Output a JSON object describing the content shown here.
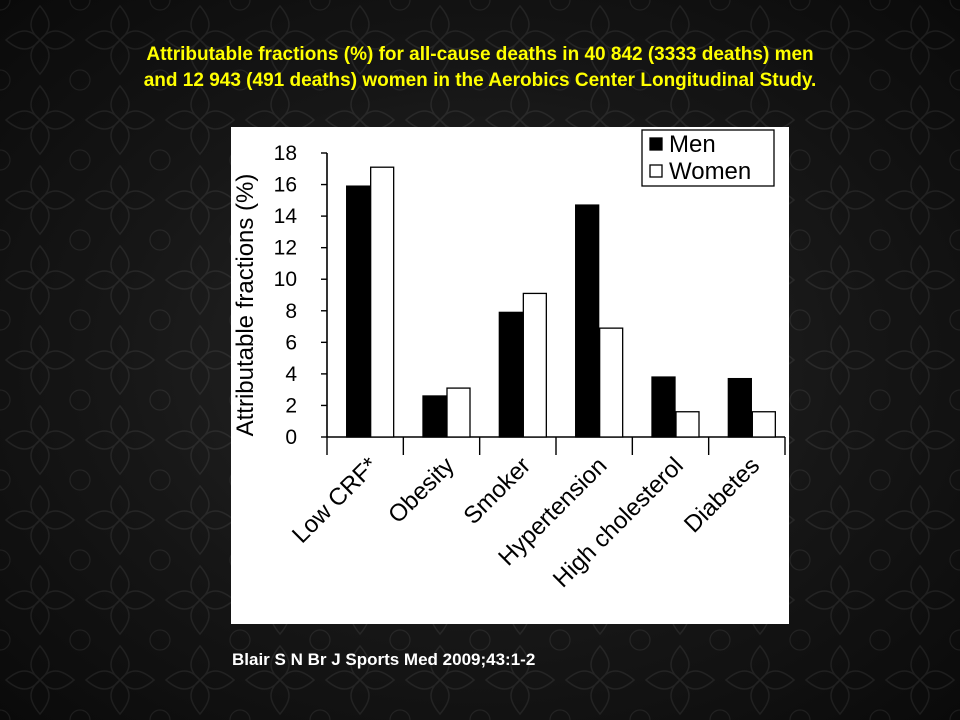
{
  "slide": {
    "title_line1": "Attributable fractions (%) for all-cause deaths in 40 842 (3333 deaths) men",
    "title_line2": "and 12 943 (491 deaths) women in the Aerobics Center Longitudinal Study.",
    "citation": "Blair S N Br J Sports Med 2009;43:1-2"
  },
  "colors": {
    "title": "#ffff00",
    "men_bar": "#000000",
    "women_bar": "#ffffff",
    "panel": "#ffffff"
  },
  "chart_data": {
    "type": "bar",
    "categories": [
      "Low CRF*",
      "Obesity",
      "Smoker",
      "Hypertension",
      "High cholesterol",
      "Diabetes"
    ],
    "series": [
      {
        "name": "Men",
        "values": [
          15.9,
          2.6,
          7.9,
          14.7,
          3.8,
          3.7
        ]
      },
      {
        "name": "Women",
        "values": [
          17.1,
          3.1,
          9.1,
          6.9,
          1.6,
          1.6
        ]
      }
    ],
    "title": "",
    "xlabel": "",
    "ylabel": "Attributable fractions (%)",
    "ylim": [
      0,
      18
    ],
    "yticks": [
      0,
      2,
      4,
      6,
      8,
      10,
      12,
      14,
      16,
      18
    ],
    "grid": false,
    "legend": "top-right"
  }
}
